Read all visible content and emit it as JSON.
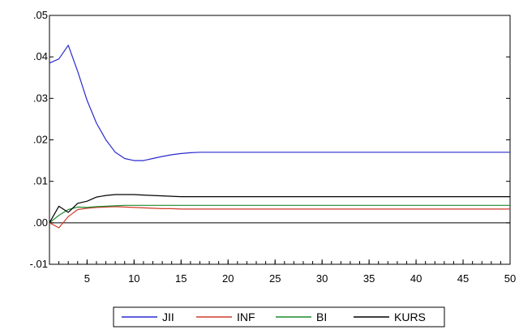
{
  "chart_data": {
    "type": "line",
    "title": "",
    "xlabel": "",
    "ylabel": "",
    "xlim": [
      1,
      50
    ],
    "ylim": [
      -0.01,
      0.05
    ],
    "x_ticks": [
      5,
      10,
      15,
      20,
      25,
      30,
      35,
      40,
      45,
      50
    ],
    "x_tick_labels": [
      "5",
      "10",
      "15",
      "20",
      "25",
      "30",
      "35",
      "40",
      "45",
      "50"
    ],
    "y_ticks": [
      -0.01,
      0.0,
      0.01,
      0.02,
      0.03,
      0.04,
      0.05
    ],
    "y_tick_labels": [
      "-.01",
      ".00",
      ".01",
      ".02",
      ".03",
      ".04",
      ".05"
    ],
    "zero_line": true,
    "grid": false,
    "legend_position": "bottom",
    "x": [
      1,
      2,
      3,
      4,
      5,
      6,
      7,
      8,
      9,
      10,
      11,
      12,
      13,
      14,
      15,
      16,
      17,
      18,
      19,
      20,
      25,
      30,
      35,
      40,
      45,
      50
    ],
    "series": [
      {
        "name": "JII",
        "color": "#2a2ad0",
        "values": [
          0.0385,
          0.0395,
          0.0428,
          0.0365,
          0.0295,
          0.024,
          0.02,
          0.017,
          0.0155,
          0.015,
          0.015,
          0.0155,
          0.016,
          0.0164,
          0.0167,
          0.0169,
          0.017,
          0.017,
          0.017,
          0.017,
          0.017,
          0.017,
          0.017,
          0.017,
          0.017,
          0.017
        ]
      },
      {
        "name": "INF",
        "color": "#d23c2a",
        "values": [
          0.0,
          -0.0012,
          0.0015,
          0.0032,
          0.0035,
          0.0037,
          0.0038,
          0.0039,
          0.0038,
          0.0037,
          0.0036,
          0.0035,
          0.0034,
          0.0034,
          0.0033,
          0.0033,
          0.0033,
          0.0033,
          0.0033,
          0.0033,
          0.0033,
          0.0033,
          0.0033,
          0.0033,
          0.0033,
          0.0033
        ]
      },
      {
        "name": "BI",
        "color": "#1e8a2e",
        "values": [
          0.0,
          0.0018,
          0.0032,
          0.0038,
          0.0037,
          0.0039,
          0.004,
          0.0041,
          0.0042,
          0.0042,
          0.0042,
          0.0042,
          0.0042,
          0.0042,
          0.0042,
          0.0042,
          0.0042,
          0.0042,
          0.0042,
          0.0042,
          0.0042,
          0.0042,
          0.0042,
          0.0042,
          0.0042,
          0.0042
        ]
      },
      {
        "name": "KURS",
        "color": "#000000",
        "values": [
          0.0,
          0.004,
          0.0025,
          0.0047,
          0.0052,
          0.0062,
          0.0066,
          0.0068,
          0.0068,
          0.0068,
          0.0067,
          0.0066,
          0.0065,
          0.0064,
          0.0063,
          0.0063,
          0.0063,
          0.0063,
          0.0063,
          0.0063,
          0.0063,
          0.0063,
          0.0063,
          0.0063,
          0.0063,
          0.0063
        ]
      }
    ]
  }
}
